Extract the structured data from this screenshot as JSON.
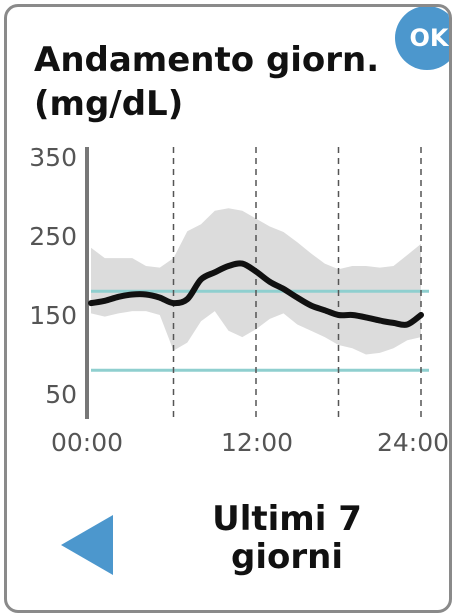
{
  "header": {
    "title_line1": "Andamento giorn.",
    "title_line2": "(mg/dL)",
    "ok_label": "OK"
  },
  "footer": {
    "period_line1": "Ultimi 7",
    "period_line2": "giorni",
    "back_icon": "triangle-left-icon"
  },
  "colors": {
    "accent": "#4c97cd",
    "target_line": "#8fcfcf",
    "band": "#dcdcdc",
    "median": "#111111"
  },
  "chart_data": {
    "type": "area",
    "y_ticks": [
      "350",
      "250",
      "150",
      "50"
    ],
    "x_ticks": [
      "00:00",
      "12:00",
      "24:00"
    ],
    "ylim": [
      50,
      350
    ],
    "xlim": [
      0,
      24
    ],
    "target_range": [
      80,
      180
    ],
    "grid_hours": [
      6,
      12,
      18,
      24
    ],
    "median": {
      "x": [
        0,
        1,
        2,
        3,
        4,
        5,
        6,
        7,
        8,
        9,
        10,
        11,
        12,
        13,
        14,
        15,
        16,
        17,
        18,
        19,
        20,
        21,
        22,
        23,
        24
      ],
      "y": [
        165,
        168,
        173,
        176,
        176,
        172,
        165,
        170,
        195,
        204,
        212,
        215,
        205,
        192,
        183,
        172,
        162,
        156,
        150,
        150,
        147,
        143,
        140,
        138,
        150
      ]
    },
    "band": {
      "x": [
        0,
        1,
        2,
        3,
        4,
        5,
        6,
        7,
        8,
        9,
        10,
        11,
        12,
        13,
        14,
        15,
        16,
        17,
        18,
        19,
        20,
        21,
        22,
        23,
        24
      ],
      "upper": [
        235,
        222,
        222,
        222,
        212,
        210,
        222,
        256,
        265,
        282,
        285,
        282,
        272,
        262,
        255,
        242,
        228,
        215,
        208,
        212,
        212,
        210,
        212,
        226,
        240
      ],
      "lower": [
        152,
        148,
        152,
        155,
        155,
        150,
        105,
        115,
        142,
        155,
        130,
        122,
        132,
        145,
        152,
        138,
        130,
        122,
        112,
        108,
        100,
        102,
        108,
        118,
        122
      ]
    }
  }
}
